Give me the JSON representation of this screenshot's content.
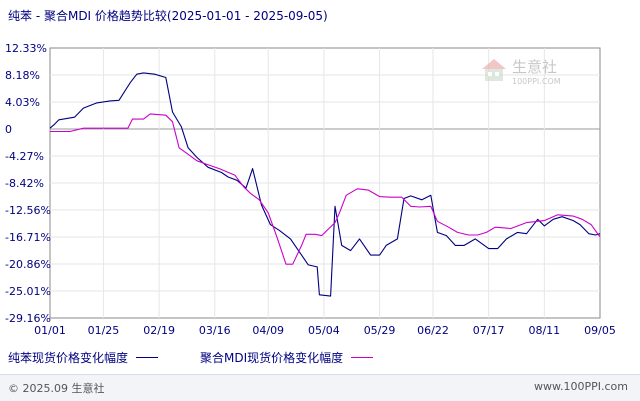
{
  "title": "纯苯 - 聚合MDI 价格趋势比较(2025-01-01 - 2025-09-05)",
  "legend": [
    {
      "label": "纯苯现货价格变化幅度",
      "color": "#000080"
    },
    {
      "label": "聚合MDI现货价格变化幅度",
      "color": "#cc00cc"
    }
  ],
  "footer": {
    "copyright": "© 2025.09 生意社",
    "site": "www.100PPI.com"
  },
  "watermark": {
    "name": "生意社",
    "url": "100PPI.COM"
  },
  "chart_data": {
    "type": "line",
    "title": "纯苯 - 聚合MDI 价格趋势比较(2025-01-01 - 2025-09-05)",
    "x_tick_labels": [
      "01/01",
      "01/25",
      "02/19",
      "03/16",
      "04/09",
      "05/04",
      "05/29",
      "06/22",
      "07/17",
      "08/11",
      "09/05"
    ],
    "y_tick_labels": [
      "12.33%",
      "8.18%",
      "4.03%",
      "0",
      "-4.27%",
      "-8.42%",
      "-12.56%",
      "-16.71%",
      "-20.86%",
      "-25.01%",
      "-29.16%"
    ],
    "ylim": [
      -29.16,
      12.33
    ],
    "grid": true,
    "legend_position": "bottom",
    "series": [
      {
        "name": "纯苯现货价格变化幅度",
        "color": "#000080",
        "points": [
          [
            "01/01",
            0.0
          ],
          [
            "01/03",
            0.6
          ],
          [
            "01/05",
            1.3
          ],
          [
            "01/12",
            1.7
          ],
          [
            "01/16",
            3.1
          ],
          [
            "01/22",
            3.9
          ],
          [
            "01/28",
            4.2
          ],
          [
            "02/01",
            4.3
          ],
          [
            "02/06",
            7.0
          ],
          [
            "02/09",
            8.3
          ],
          [
            "02/12",
            8.5
          ],
          [
            "02/17",
            8.3
          ],
          [
            "02/22",
            7.8
          ],
          [
            "02/25",
            2.5
          ],
          [
            "03/01",
            0.2
          ],
          [
            "03/04",
            -3.0
          ],
          [
            "03/08",
            -4.5
          ],
          [
            "03/13",
            -6.0
          ],
          [
            "03/19",
            -6.8
          ],
          [
            "03/22",
            -7.5
          ],
          [
            "03/26",
            -8.0
          ],
          [
            "03/30",
            -9.2
          ],
          [
            "04/02",
            -6.2
          ],
          [
            "04/06",
            -11.8
          ],
          [
            "04/10",
            -14.8
          ],
          [
            "04/14",
            -15.7
          ],
          [
            "04/19",
            -17.0
          ],
          [
            "04/23",
            -19.0
          ],
          [
            "04/27",
            -21.0
          ],
          [
            "05/01",
            -21.3
          ],
          [
            "05/02",
            -25.6
          ],
          [
            "05/07",
            -25.8
          ],
          [
            "05/09",
            -12.0
          ],
          [
            "05/12",
            -18.0
          ],
          [
            "05/16",
            -18.8
          ],
          [
            "05/20",
            -17.0
          ],
          [
            "05/25",
            -19.5
          ],
          [
            "05/29",
            -19.5
          ],
          [
            "06/01",
            -18.0
          ],
          [
            "06/06",
            -17.0
          ],
          [
            "06/09",
            -10.8
          ],
          [
            "06/12",
            -10.4
          ],
          [
            "06/17",
            -11.0
          ],
          [
            "06/21",
            -10.3
          ],
          [
            "06/24",
            -16.0
          ],
          [
            "06/28",
            -16.5
          ],
          [
            "07/02",
            -18.0
          ],
          [
            "07/06",
            -18.0
          ],
          [
            "07/11",
            -17.0
          ],
          [
            "07/17",
            -18.5
          ],
          [
            "07/21",
            -18.5
          ],
          [
            "07/25",
            -17.0
          ],
          [
            "07/30",
            -16.0
          ],
          [
            "08/03",
            -16.2
          ],
          [
            "08/08",
            -14.0
          ],
          [
            "08/11",
            -15.0
          ],
          [
            "08/15",
            -14.0
          ],
          [
            "08/19",
            -13.6
          ],
          [
            "08/24",
            -14.2
          ],
          [
            "08/27",
            -14.8
          ],
          [
            "08/31",
            -16.2
          ],
          [
            "09/03",
            -16.4
          ],
          [
            "09/05",
            -16.2
          ]
        ]
      },
      {
        "name": "聚合MDI现货价格变化幅度",
        "color": "#cc00cc",
        "points": [
          [
            "01/01",
            -0.5
          ],
          [
            "01/10",
            -0.5
          ],
          [
            "01/16",
            0.0
          ],
          [
            "01/25",
            0.0
          ],
          [
            "02/05",
            0.0
          ],
          [
            "02/07",
            1.4
          ],
          [
            "02/12",
            1.4
          ],
          [
            "02/15",
            2.2
          ],
          [
            "02/22",
            2.0
          ],
          [
            "02/25",
            1.0
          ],
          [
            "02/28",
            -3.0
          ],
          [
            "03/04",
            -4.0
          ],
          [
            "03/08",
            -5.0
          ],
          [
            "03/12",
            -5.5
          ],
          [
            "03/18",
            -6.2
          ],
          [
            "03/25",
            -7.2
          ],
          [
            "03/29",
            -9.0
          ],
          [
            "04/01",
            -10.0
          ],
          [
            "04/05",
            -11.0
          ],
          [
            "04/09",
            -13.0
          ],
          [
            "04/13",
            -16.8
          ],
          [
            "04/17",
            -20.9
          ],
          [
            "04/20",
            -20.9
          ],
          [
            "04/24",
            -18.0
          ],
          [
            "04/26",
            -16.3
          ],
          [
            "04/30",
            -16.3
          ],
          [
            "05/03",
            -16.5
          ],
          [
            "05/06",
            -15.5
          ],
          [
            "05/09",
            -14.5
          ],
          [
            "05/11",
            -13.0
          ],
          [
            "05/14",
            -10.3
          ],
          [
            "05/19",
            -9.3
          ],
          [
            "05/24",
            -9.5
          ],
          [
            "05/29",
            -10.5
          ],
          [
            "06/03",
            -10.6
          ],
          [
            "06/08",
            -10.6
          ],
          [
            "06/12",
            -12.0
          ],
          [
            "06/16",
            -12.1
          ],
          [
            "06/21",
            -12.0
          ],
          [
            "06/24",
            -14.3
          ],
          [
            "06/29",
            -15.2
          ],
          [
            "07/03",
            -16.0
          ],
          [
            "07/08",
            -16.4
          ],
          [
            "07/12",
            -16.4
          ],
          [
            "07/16",
            -16.0
          ],
          [
            "07/20",
            -15.2
          ],
          [
            "07/27",
            -15.4
          ],
          [
            "08/03",
            -14.5
          ],
          [
            "08/11",
            -14.2
          ],
          [
            "08/17",
            -13.3
          ],
          [
            "08/24",
            -13.5
          ],
          [
            "08/28",
            -14.0
          ],
          [
            "09/01",
            -14.8
          ],
          [
            "09/05",
            -16.7
          ]
        ]
      }
    ]
  }
}
